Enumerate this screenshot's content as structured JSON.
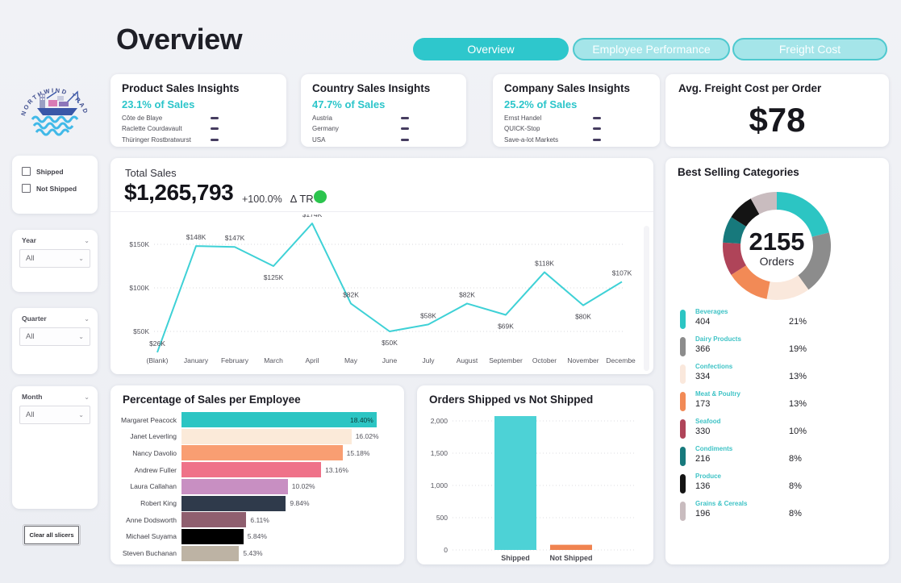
{
  "page": {
    "title": "Overview"
  },
  "tabs": [
    {
      "label": "Overview",
      "active": true
    },
    {
      "label": "Employee Performance",
      "active": false
    },
    {
      "label": "Freight Cost",
      "active": false
    }
  ],
  "logo": {
    "name": "Northwind Traders",
    "arc_text": "NORTHWIND TRADERS"
  },
  "filters": {
    "checkboxes": [
      {
        "label": "Shipped",
        "checked": false
      },
      {
        "label": "Not Shipped",
        "checked": false
      }
    ],
    "slicers": [
      {
        "label": "Year",
        "value": "All"
      },
      {
        "label": "Quarter",
        "value": "All"
      },
      {
        "label": "Month",
        "value": "All"
      }
    ],
    "clear_button": "Clear all slicers"
  },
  "insight_cards": [
    {
      "title": "Product Sales Insights",
      "highlight": "23.1% of Sales",
      "items": [
        "Côte de Blaye",
        "Raclette Courdavault",
        "Thüringer Rostbratwurst"
      ]
    },
    {
      "title": "Country Sales Insights",
      "highlight": "47.7% of Sales",
      "items": [
        "Austria",
        "Germany",
        "USA"
      ]
    },
    {
      "title": "Company Sales Insights",
      "highlight": "25.2% of Sales",
      "items": [
        "Ernst Handel",
        "QUICK-Stop",
        "Save-a-lot Markets"
      ]
    }
  ],
  "freight_card": {
    "title": "Avg. Freight Cost per Order",
    "value": "$78"
  },
  "total_sales": {
    "label": "Total Sales",
    "value": "$1,265,793",
    "delta": "+100.0%",
    "delta_label": "∆ TR",
    "indicator_color": "#2bc44d"
  },
  "chart_data": [
    {
      "id": "total-sales-trend",
      "type": "line",
      "categories": [
        "(Blank)",
        "January",
        "February",
        "March",
        "April",
        "May",
        "June",
        "July",
        "August",
        "September",
        "October",
        "November",
        "December"
      ],
      "values": [
        26,
        148,
        147,
        125,
        174,
        82,
        50,
        58,
        82,
        69,
        118,
        80,
        107
      ],
      "value_labels": [
        "$26K",
        "$148K",
        "$147K",
        "$125K",
        "$174K",
        "$82K",
        "$50K",
        "$58K",
        "$82K",
        "$69K",
        "$118K",
        "$80K",
        "$107K"
      ],
      "label_below_indices": [
        3,
        6,
        9,
        11
      ],
      "unit": "USD thousands",
      "yticks": [
        {
          "value": 50,
          "label": "$50K"
        },
        {
          "value": 100,
          "label": "$100K"
        },
        {
          "value": 150,
          "label": "$150K"
        }
      ],
      "ylim": [
        0,
        185
      ],
      "grid": "dotted-horizontal",
      "line_color": "#3ed1d6"
    },
    {
      "id": "sales-per-employee",
      "type": "bar",
      "orientation": "horizontal",
      "title": "Percentage of Sales per Employee",
      "categories": [
        "Margaret Peacock",
        "Janet Leverling",
        "Nancy Davolio",
        "Andrew Fuller",
        "Laura Callahan",
        "Robert King",
        "Anne Dodsworth",
        "Michael Suyama",
        "Steven Buchanan"
      ],
      "values": [
        18.4,
        16.02,
        15.18,
        13.16,
        10.02,
        9.84,
        6.11,
        5.84,
        5.43
      ],
      "value_labels": [
        "18.40%",
        "16.02%",
        "15.18%",
        "13.16%",
        "10.02%",
        "9.84%",
        "6.11%",
        "5.84%",
        "5.43%"
      ],
      "bar_colors": [
        "#2cc5c3",
        "#fbead9",
        "#f99e72",
        "#ef7289",
        "#c88fc2",
        "#2f3a4b",
        "#8f5f6f",
        "#000000",
        "#bdb3a4"
      ],
      "xlim": [
        0,
        19.5
      ]
    },
    {
      "id": "orders-shipped",
      "type": "bar",
      "orientation": "vertical",
      "title": "Orders Shipped vs Not Shipped",
      "categories": [
        "Shipped",
        "Not Shipped"
      ],
      "values": [
        2075,
        80
      ],
      "bar_colors": [
        "#4dd2d6",
        "#f08350"
      ],
      "yticks": [
        {
          "value": 0,
          "label": "0"
        },
        {
          "value": 500,
          "label": "500"
        },
        {
          "value": 1000,
          "label": "1,000"
        },
        {
          "value": 1500,
          "label": "1,500"
        },
        {
          "value": 2000,
          "label": "2,000"
        }
      ],
      "ylim": [
        0,
        2100
      ],
      "grid": "dotted-horizontal"
    },
    {
      "id": "best-selling-categories",
      "type": "donut",
      "title": "Best Selling Categories",
      "center": {
        "value": "2155",
        "label": "Orders"
      },
      "segments": [
        {
          "name": "Beverages",
          "orders": "404",
          "pct": "21%",
          "pct_value": 21,
          "color": "#2cc5c3"
        },
        {
          "name": "Dairy Products",
          "orders": "366",
          "pct": "19%",
          "pct_value": 19,
          "color": "#8c8c8c"
        },
        {
          "name": "Confections",
          "orders": "334",
          "pct": "13%",
          "pct_value": 13,
          "color": "#fae8dc"
        },
        {
          "name": "Meat & Poultry",
          "orders": "173",
          "pct": "13%",
          "pct_value": 13,
          "color": "#f28a56"
        },
        {
          "name": "Seafood",
          "orders": "330",
          "pct": "10%",
          "pct_value": 10,
          "color": "#af4459"
        },
        {
          "name": "Condiments",
          "orders": "216",
          "pct": "8%",
          "pct_value": 8,
          "color": "#17797c"
        },
        {
          "name": "Produce",
          "orders": "136",
          "pct": "8%",
          "pct_value": 8,
          "color": "#141414"
        },
        {
          "name": "Grains & Cereals",
          "orders": "196",
          "pct": "8%",
          "pct_value": 8,
          "color": "#c9bcbf"
        }
      ]
    }
  ]
}
